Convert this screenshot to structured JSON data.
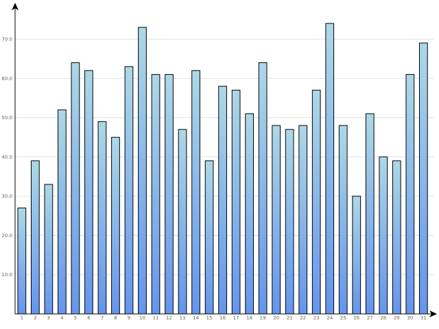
{
  "chart_data": {
    "type": "bar",
    "categories": [
      "1",
      "2",
      "3",
      "4",
      "5",
      "6",
      "7",
      "8",
      "9",
      "10",
      "11",
      "12",
      "13",
      "14",
      "15",
      "16",
      "17",
      "18",
      "19",
      "20",
      "21",
      "22",
      "23",
      "24",
      "25",
      "26",
      "27",
      "28",
      "29",
      "30",
      "31"
    ],
    "values": [
      27,
      39,
      33,
      52,
      64,
      62,
      49,
      45,
      63,
      73,
      61,
      61,
      47,
      62,
      39,
      58,
      57,
      51,
      64,
      48,
      47,
      48,
      57,
      74,
      48,
      30,
      51,
      40,
      39,
      61,
      69
    ],
    "title": "",
    "xlabel": "",
    "ylabel": "",
    "ylim": [
      0,
      77
    ],
    "yticks": [
      10,
      20,
      30,
      40,
      50,
      60,
      70
    ],
    "ytick_labels": [
      "10.0",
      "20.0",
      "30.0",
      "40.0",
      "50.0",
      "60.0",
      "70.0"
    ],
    "grid": true,
    "legend": "none",
    "colors": {
      "bar_top": "#add8e6",
      "bar_bottom": "#6495ed",
      "bar_stroke": "#000000",
      "grid": "#e0e0e0",
      "axis": "#000000"
    }
  }
}
